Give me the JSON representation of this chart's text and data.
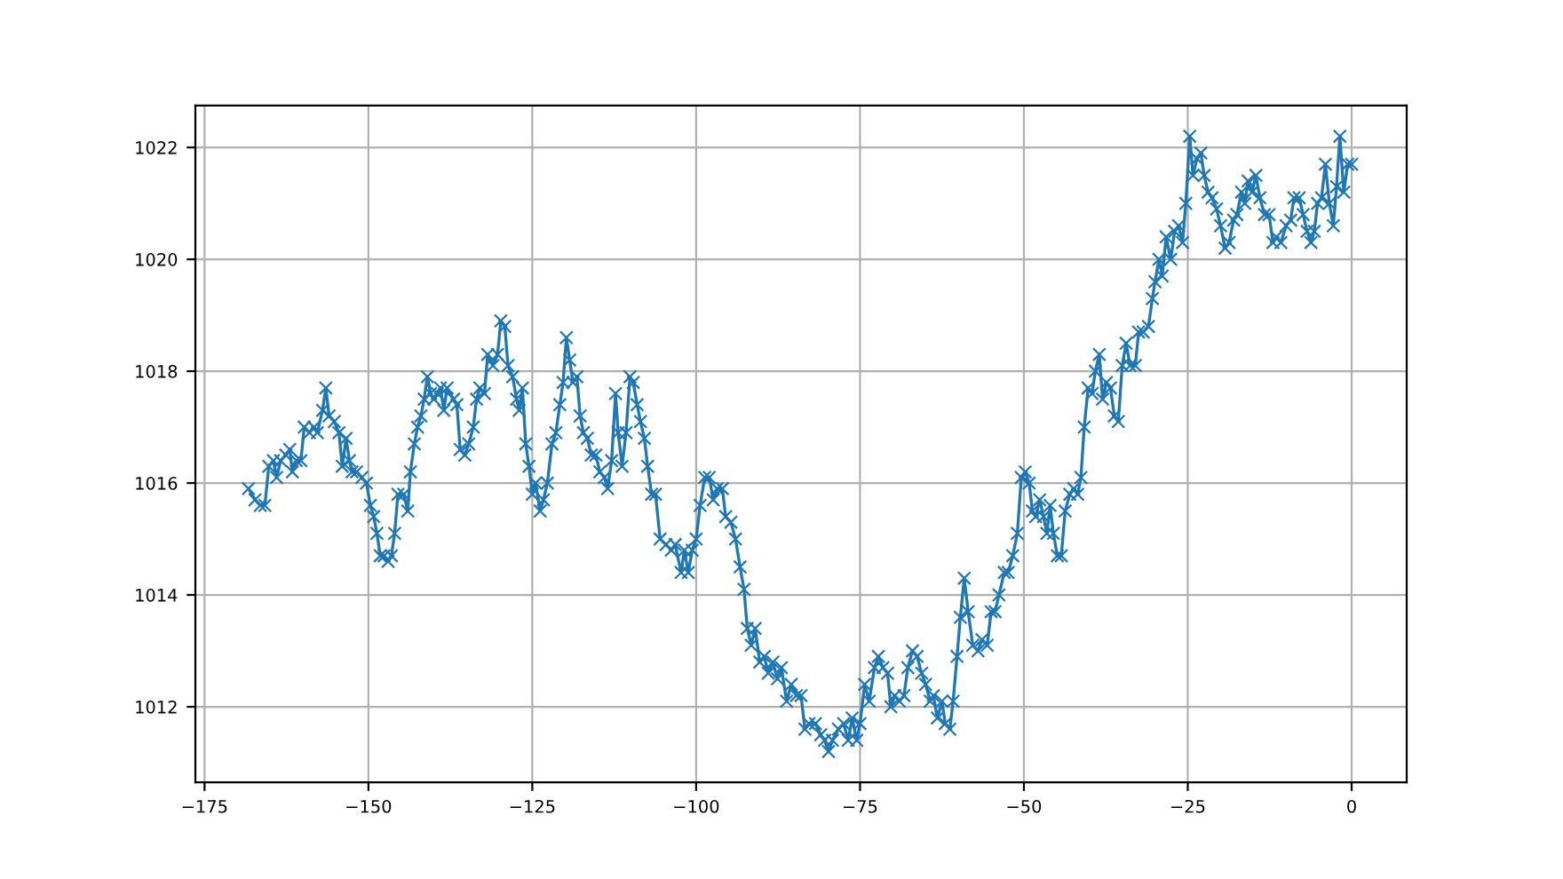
{
  "chart_data": {
    "type": "line",
    "marker": "cross",
    "line_style": "solid",
    "grid": true,
    "xlim": [
      -176.4,
      8.4
    ],
    "ylim": [
      1010.65,
      1022.75
    ],
    "xticks": [
      {
        "value": -175,
        "label": "−175"
      },
      {
        "value": -150,
        "label": "−150"
      },
      {
        "value": -125,
        "label": "−125"
      },
      {
        "value": -100,
        "label": "−100"
      },
      {
        "value": -75,
        "label": "−75"
      },
      {
        "value": -50,
        "label": "−50"
      },
      {
        "value": -25,
        "label": "−25"
      },
      0
    ],
    "yticks": [
      1012,
      1014,
      1016,
      1018,
      1020,
      1022
    ],
    "series": [
      {
        "color": "#1f77b4",
        "x": [
          -168.3,
          -167.3,
          -166.5,
          -165.8,
          -165.2,
          -164.5,
          -164.0,
          -163.4,
          -162.6,
          -162.0,
          -161.6,
          -161.0,
          -160.3,
          -159.8,
          -159.0,
          -158.3,
          -157.8,
          -157.0,
          -156.5,
          -156.0,
          -155.2,
          -154.5,
          -154.0,
          -153.4,
          -152.9,
          -152.5,
          -151.8,
          -151.0,
          -150.3,
          -149.7,
          -149.2,
          -148.7,
          -148.2,
          -147.6,
          -147.0,
          -146.5,
          -146.0,
          -145.5,
          -144.6,
          -144.0,
          -143.6,
          -143.0,
          -142.5,
          -142.0,
          -141.5,
          -141.0,
          -140.5,
          -140.0,
          -139.5,
          -139.0,
          -138.5,
          -138.0,
          -137.0,
          -136.5,
          -136.0,
          -135.3,
          -134.7,
          -134.0,
          -133.5,
          -133.0,
          -132.3,
          -131.8,
          -131.0,
          -130.3,
          -129.8,
          -129.2,
          -128.7,
          -128.0,
          -127.4,
          -127.0,
          -126.5,
          -126.0,
          -125.5,
          -125.0,
          -124.5,
          -123.8,
          -123.3,
          -122.7,
          -122.0,
          -121.4,
          -120.8,
          -120.3,
          -119.8,
          -119.3,
          -118.8,
          -118.2,
          -117.7,
          -117.2,
          -116.6,
          -116.0,
          -115.3,
          -114.7,
          -114.0,
          -113.5,
          -112.9,
          -112.3,
          -111.9,
          -111.3,
          -110.7,
          -110.1,
          -109.6,
          -109.0,
          -108.5,
          -107.9,
          -107.4,
          -106.8,
          -106.2,
          -105.5,
          -104.6,
          -103.8,
          -103.2,
          -102.3,
          -101.8,
          -101.2,
          -100.6,
          -100.0,
          -99.4,
          -98.7,
          -98.0,
          -97.4,
          -96.8,
          -96.0,
          -95.5,
          -94.7,
          -94.0,
          -93.3,
          -92.7,
          -92.2,
          -91.6,
          -91.0,
          -90.3,
          -89.6,
          -89.0,
          -88.3,
          -87.6,
          -87.0,
          -86.2,
          -85.5,
          -84.7,
          -84.0,
          -83.4,
          -82.8,
          -81.8,
          -81.0,
          -80.4,
          -79.8,
          -79.2,
          -78.3,
          -77.5,
          -76.8,
          -76.2,
          -75.5,
          -75.0,
          -74.3,
          -73.6,
          -72.8,
          -72.2,
          -71.5,
          -70.8,
          -70.3,
          -69.7,
          -69.0,
          -68.3,
          -67.7,
          -67.0,
          -66.3,
          -65.6,
          -65.0,
          -64.3,
          -63.8,
          -63.2,
          -62.5,
          -62.0,
          -61.3,
          -60.8,
          -60.2,
          -59.7,
          -59.1,
          -58.5,
          -57.8,
          -57.0,
          -56.4,
          -55.6,
          -55.0,
          -54.4,
          -53.8,
          -53.0,
          -52.4,
          -51.7,
          -51.0,
          -50.4,
          -49.8,
          -49.2,
          -48.7,
          -48.2,
          -47.6,
          -47.0,
          -46.5,
          -46.0,
          -45.5,
          -44.9,
          -44.3,
          -43.7,
          -43.0,
          -42.4,
          -41.8,
          -41.3,
          -40.8,
          -40.2,
          -39.6,
          -39.1,
          -38.5,
          -38.0,
          -37.4,
          -36.8,
          -36.2,
          -35.6,
          -35.0,
          -34.4,
          -33.8,
          -33.0,
          -32.5,
          -31.8,
          -31.0,
          -30.4,
          -30.0,
          -29.4,
          -28.9,
          -28.3,
          -27.6,
          -27.0,
          -26.4,
          -25.8,
          -25.3,
          -24.7,
          -24.2,
          -23.6,
          -23.0,
          -22.5,
          -21.9,
          -21.3,
          -20.6,
          -20.0,
          -19.3,
          -18.7,
          -18.0,
          -17.5,
          -16.8,
          -16.3,
          -15.8,
          -15.2,
          -14.6,
          -14.0,
          -13.3,
          -12.6,
          -12.0,
          -11.5,
          -10.8,
          -10.0,
          -9.3,
          -8.8,
          -8.0,
          -7.4,
          -6.8,
          -6.2,
          -5.7,
          -5.2,
          -4.6,
          -4.0,
          -3.4,
          -2.8,
          -2.3,
          -1.8,
          -1.2,
          -0.6,
          0.0
        ],
        "values": [
          1015.9,
          1015.7,
          1015.6,
          1015.6,
          1016.3,
          1016.4,
          1016.1,
          1016.4,
          1016.5,
          1016.6,
          1016.2,
          1016.4,
          1016.4,
          1017.0,
          1016.9,
          1017.0,
          1016.9,
          1017.3,
          1017.7,
          1017.2,
          1017.1,
          1016.9,
          1016.3,
          1016.8,
          1016.4,
          1016.2,
          1016.2,
          1016.1,
          1016.0,
          1015.6,
          1015.4,
          1015.1,
          1014.7,
          1014.7,
          1014.6,
          1014.7,
          1015.1,
          1015.8,
          1015.8,
          1015.5,
          1016.2,
          1016.7,
          1017.0,
          1017.2,
          1017.5,
          1017.9,
          1017.6,
          1017.5,
          1017.6,
          1017.7,
          1017.3,
          1017.7,
          1017.5,
          1017.4,
          1016.6,
          1016.5,
          1016.7,
          1017.0,
          1017.5,
          1017.7,
          1017.6,
          1018.3,
          1018.1,
          1018.3,
          1018.9,
          1018.8,
          1018.1,
          1017.9,
          1017.5,
          1017.3,
          1017.7,
          1016.7,
          1016.3,
          1015.8,
          1016.0,
          1015.5,
          1015.7,
          1016.0,
          1016.7,
          1016.9,
          1017.4,
          1017.8,
          1018.6,
          1018.2,
          1017.8,
          1017.9,
          1017.2,
          1016.9,
          1016.8,
          1016.5,
          1016.5,
          1016.2,
          1016.1,
          1015.9,
          1016.4,
          1017.6,
          1016.9,
          1016.3,
          1016.9,
          1017.9,
          1017.8,
          1017.4,
          1017.1,
          1016.8,
          1016.3,
          1015.8,
          1015.8,
          1015.0,
          1014.9,
          1014.8,
          1014.9,
          1014.4,
          1014.8,
          1014.4,
          1014.8,
          1015.0,
          1015.6,
          1016.1,
          1016.1,
          1015.7,
          1015.9,
          1015.9,
          1015.4,
          1015.3,
          1015.0,
          1014.5,
          1014.1,
          1013.4,
          1013.1,
          1013.4,
          1012.8,
          1012.9,
          1012.6,
          1012.8,
          1012.5,
          1012.7,
          1012.1,
          1012.4,
          1012.2,
          1012.2,
          1011.6,
          1011.7,
          1011.7,
          1011.5,
          1011.4,
          1011.2,
          1011.4,
          1011.6,
          1011.7,
          1011.4,
          1011.8,
          1011.4,
          1011.7,
          1012.4,
          1012.1,
          1012.7,
          1012.9,
          1012.7,
          1012.6,
          1012.0,
          1012.2,
          1012.1,
          1012.2,
          1012.7,
          1013.0,
          1012.9,
          1012.6,
          1012.4,
          1012.1,
          1012.2,
          1011.8,
          1012.1,
          1011.7,
          1011.6,
          1012.1,
          1012.9,
          1013.6,
          1014.3,
          1013.7,
          1013.1,
          1013.0,
          1013.2,
          1013.1,
          1013.7,
          1013.7,
          1014.0,
          1014.4,
          1014.4,
          1014.7,
          1015.1,
          1016.1,
          1016.2,
          1016.0,
          1015.5,
          1015.4,
          1015.7,
          1015.4,
          1015.1,
          1015.6,
          1015.1,
          1014.7,
          1014.7,
          1015.5,
          1015.8,
          1015.9,
          1015.8,
          1016.1,
          1017.0,
          1017.7,
          1017.6,
          1018.0,
          1018.3,
          1017.5,
          1017.8,
          1017.7,
          1017.2,
          1017.1,
          1018.1,
          1018.5,
          1018.1,
          1018.1,
          1018.7,
          1018.7,
          1018.8,
          1019.3,
          1019.6,
          1020.0,
          1019.7,
          1020.4,
          1020.0,
          1020.5,
          1020.6,
          1020.3,
          1021.0,
          1022.2,
          1021.5,
          1021.8,
          1021.9,
          1021.5,
          1021.2,
          1021.1,
          1020.9,
          1020.6,
          1020.2,
          1020.3,
          1020.7,
          1020.8,
          1021.2,
          1021.0,
          1021.4,
          1021.2,
          1021.5,
          1021.1,
          1020.8,
          1020.8,
          1020.3,
          1020.4,
          1020.3,
          1020.6,
          1020.7,
          1021.1,
          1021.1,
          1020.8,
          1020.5,
          1020.3,
          1020.5,
          1021.0,
          1021.1,
          1021.7,
          1021.0,
          1020.6,
          1021.3,
          1022.2,
          1021.2,
          1021.7,
          1021.7
        ]
      }
    ]
  }
}
